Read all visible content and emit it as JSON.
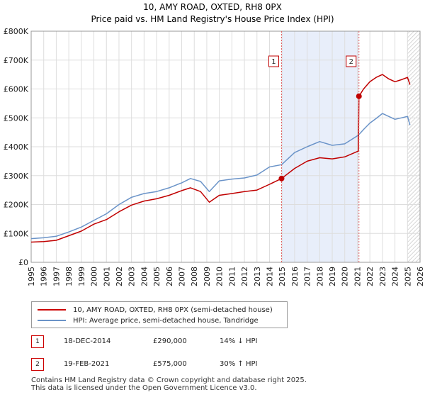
{
  "chart_data": {
    "type": "line",
    "title": "10, AMY ROAD, OXTED, RH8 0PX",
    "subtitle": "Price paid vs. HM Land Registry's House Price Index (HPI)",
    "xlabel": "",
    "ylabel": "",
    "xlim": [
      1995,
      2026
    ],
    "ylim": [
      0,
      800000
    ],
    "x_ticks": [
      "1995",
      "1996",
      "1997",
      "1998",
      "1999",
      "2000",
      "2001",
      "2002",
      "2003",
      "2004",
      "2005",
      "2006",
      "2007",
      "2008",
      "2009",
      "2010",
      "2011",
      "2012",
      "2013",
      "2014",
      "2015",
      "2016",
      "2017",
      "2018",
      "2019",
      "2020",
      "2021",
      "2022",
      "2023",
      "2024",
      "2025",
      "2026"
    ],
    "y_ticks": [
      0,
      100000,
      200000,
      300000,
      400000,
      500000,
      600000,
      700000,
      800000
    ],
    "y_tick_labels": [
      "£0",
      "£100K",
      "£200K",
      "£300K",
      "£400K",
      "£500K",
      "£600K",
      "£700K",
      "£800K"
    ],
    "grid": true,
    "shaded_region": [
      2014.96,
      2021.13
    ],
    "hatched_region_from": 2025.0,
    "series": [
      {
        "name": "10, AMY ROAD, OXTED, RH8 0PX (semi-detached house)",
        "color": "#c00000",
        "x": [
          1995.0,
          1996.0,
          1997.0,
          1998.0,
          1999.0,
          2000.0,
          2001.0,
          2002.0,
          2003.0,
          2004.0,
          2005.0,
          2006.0,
          2007.0,
          2007.7,
          2008.5,
          2009.2,
          2010.0,
          2011.0,
          2012.0,
          2013.0,
          2014.0,
          2014.96,
          2016.0,
          2017.0,
          2018.0,
          2019.0,
          2020.0,
          2021.08,
          2021.13,
          2021.5,
          2022.0,
          2022.5,
          2023.0,
          2023.5,
          2024.0,
          2024.5,
          2025.0,
          2025.2
        ],
        "y": [
          70000,
          72000,
          76000,
          92000,
          108000,
          132000,
          148000,
          175000,
          198000,
          212000,
          220000,
          232000,
          248000,
          258000,
          245000,
          208000,
          232000,
          238000,
          245000,
          250000,
          270000,
          290000,
          325000,
          350000,
          362000,
          358000,
          365000,
          385000,
          575000,
          600000,
          625000,
          640000,
          650000,
          635000,
          625000,
          632000,
          640000,
          615000
        ]
      },
      {
        "name": "HPI: Average price, semi-detached house, Tandridge",
        "color": "#6a93c8",
        "x": [
          1995.0,
          1996.0,
          1997.0,
          1998.0,
          1999.0,
          2000.0,
          2001.0,
          2002.0,
          2003.0,
          2004.0,
          2005.0,
          2006.0,
          2007.0,
          2007.7,
          2008.5,
          2009.2,
          2010.0,
          2011.0,
          2012.0,
          2013.0,
          2014.0,
          2014.96,
          2016.0,
          2017.0,
          2018.0,
          2019.0,
          2020.0,
          2021.08,
          2021.5,
          2022.0,
          2022.5,
          2023.0,
          2023.5,
          2024.0,
          2024.5,
          2025.0,
          2025.2
        ],
        "y": [
          82000,
          85000,
          90000,
          105000,
          122000,
          145000,
          168000,
          200000,
          225000,
          238000,
          245000,
          258000,
          275000,
          290000,
          280000,
          245000,
          282000,
          288000,
          292000,
          302000,
          330000,
          338000,
          380000,
          400000,
          418000,
          405000,
          410000,
          440000,
          460000,
          482000,
          498000,
          515000,
          505000,
          495000,
          500000,
          505000,
          475000
        ]
      }
    ],
    "sales": [
      {
        "marker": "1",
        "x": 2014.96,
        "y": 290000,
        "date": "18-DEC-2014",
        "price": "£290,000",
        "hpi_change": "14% ↓ HPI"
      },
      {
        "marker": "2",
        "x": 2021.13,
        "y": 575000,
        "date": "19-FEB-2021",
        "price": "£575,000",
        "hpi_change": "30% ↑ HPI"
      }
    ]
  },
  "legend": {
    "property_label": "10, AMY ROAD, OXTED, RH8 0PX (semi-detached house)",
    "hpi_label": "HPI: Average price, semi-detached house, Tandridge"
  },
  "footer": {
    "line1": "Contains HM Land Registry data © Crown copyright and database right 2025.",
    "line2": "This data is licensed under the Open Government Licence v3.0."
  }
}
